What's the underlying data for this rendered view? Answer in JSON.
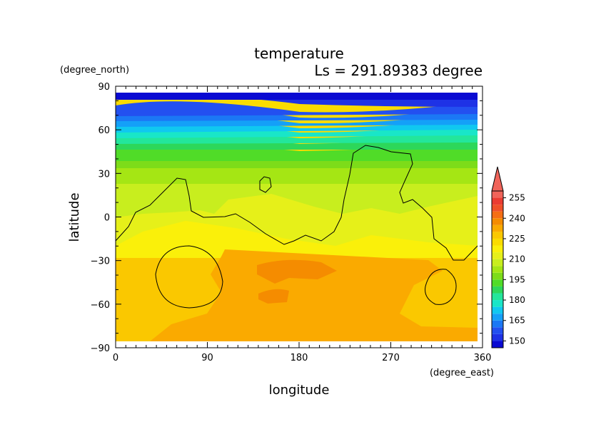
{
  "chart_data": {
    "type": "heatmap",
    "title": "temperature",
    "subtitle": "Ls = 291.89383 degree",
    "xlabel": "longitude",
    "ylabel": "latitude",
    "xunit": "(degree_east)",
    "yunit": "(degree_north)",
    "xlim": [
      0,
      360
    ],
    "ylim": [
      -90,
      90
    ],
    "xticks": [
      "0",
      "90",
      "180",
      "270",
      "360"
    ],
    "yticks": [
      "90",
      "60",
      "30",
      "0",
      "−30",
      "−60",
      "−90"
    ],
    "colorbar": {
      "levels": [
        145,
        150,
        155,
        160,
        165,
        170,
        175,
        180,
        185,
        190,
        195,
        200,
        205,
        210,
        215,
        220,
        225,
        230,
        235,
        240,
        245,
        250,
        255,
        260
      ],
      "colors": [
        "#0a0ad2",
        "#1e32e6",
        "#2350f0",
        "#1b78f5",
        "#14a0f8",
        "#10c8f0",
        "#19e6c8",
        "#23e69b",
        "#2dd75a",
        "#50dc28",
        "#7ddc19",
        "#a5e614",
        "#c8ee1e",
        "#e6f019",
        "#faf00a",
        "#fadc00",
        "#fac800",
        "#faaa00",
        "#f58c00",
        "#f56e14",
        "#f05028",
        "#eb3c32",
        "#f0645a"
      ],
      "tick_labels": [
        "150",
        "165",
        "180",
        "195",
        "210",
        "225",
        "240",
        "255"
      ],
      "extend": "max",
      "placement": "right"
    },
    "data_latitude_range": [
      -85,
      85
    ],
    "data_longitude_range": [
      0,
      355
    ]
  }
}
